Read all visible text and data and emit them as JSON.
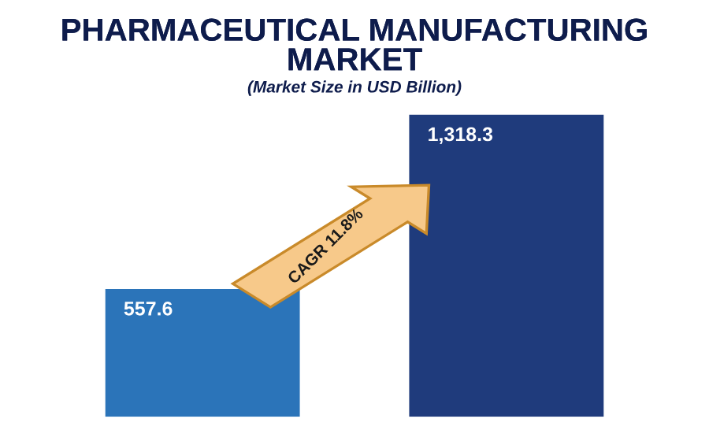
{
  "chart_data": {
    "type": "bar",
    "title": "PHARMACEUTICAL MANUFACTURING MARKET",
    "subtitle": "(Market Size in USD Billion)",
    "categories": [
      null,
      null
    ],
    "values": [
      557.6,
      1318.3
    ],
    "colors": [
      "#2b74b9",
      "#1f3b7c"
    ],
    "value_labels": [
      "557.6",
      "1,318.3"
    ],
    "annotations": [
      "CAGR 11.8%"
    ]
  }
}
